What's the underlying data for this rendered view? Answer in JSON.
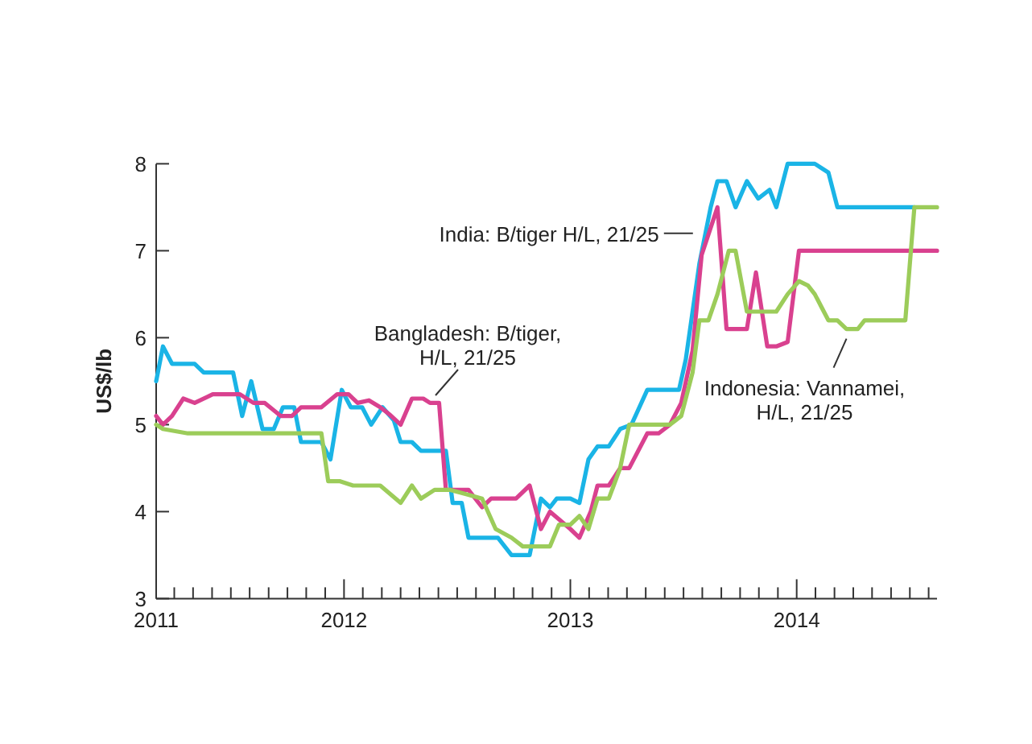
{
  "chart_data": {
    "type": "line",
    "ylabel": "US$/lb",
    "xlim": [
      2011.17,
      2014.62
    ],
    "ylim": [
      3,
      8
    ],
    "yticks": [
      3,
      4,
      5,
      6,
      7,
      8
    ],
    "xticks": [
      {
        "value": 2011.17,
        "label": "2011"
      },
      {
        "value": 2011.25,
        "label": null
      },
      {
        "value": 2011.333,
        "label": null
      },
      {
        "value": 2011.417,
        "label": null
      },
      {
        "value": 2011.5,
        "label": null
      },
      {
        "value": 2011.583,
        "label": null
      },
      {
        "value": 2011.667,
        "label": null
      },
      {
        "value": 2011.75,
        "label": null
      },
      {
        "value": 2011.833,
        "label": null
      },
      {
        "value": 2011.917,
        "label": null
      },
      2012,
      {
        "value": 2012.083,
        "label": null
      },
      {
        "value": 2012.167,
        "label": null
      },
      {
        "value": 2012.25,
        "label": null
      },
      {
        "value": 2012.333,
        "label": null
      },
      {
        "value": 2012.417,
        "label": null
      },
      {
        "value": 2012.5,
        "label": null
      },
      {
        "value": 2012.583,
        "label": null
      },
      {
        "value": 2012.667,
        "label": null
      },
      {
        "value": 2012.75,
        "label": null
      },
      {
        "value": 2012.833,
        "label": null
      },
      {
        "value": 2012.917,
        "label": null
      },
      2013,
      {
        "value": 2013.083,
        "label": null
      },
      {
        "value": 2013.167,
        "label": null
      },
      {
        "value": 2013.25,
        "label": null
      },
      {
        "value": 2013.333,
        "label": null
      },
      {
        "value": 2013.417,
        "label": null
      },
      {
        "value": 2013.5,
        "label": null
      },
      {
        "value": 2013.583,
        "label": null
      },
      {
        "value": 2013.667,
        "label": null
      },
      {
        "value": 2013.75,
        "label": null
      },
      {
        "value": 2013.833,
        "label": null
      },
      {
        "value": 2013.917,
        "label": null
      },
      2014,
      {
        "value": 2014.083,
        "label": null
      },
      {
        "value": 2014.167,
        "label": null
      },
      {
        "value": 2014.25,
        "label": null
      },
      {
        "value": 2014.333,
        "label": null
      },
      {
        "value": 2014.417,
        "label": null
      },
      {
        "value": 2014.5,
        "label": null
      },
      {
        "value": 2014.583,
        "label": null
      }
    ],
    "grid": false,
    "marker": "none",
    "line_style": "solid",
    "series": [
      {
        "color": "#1ab4e6",
        "x": [
          2011.17,
          2011.2,
          2011.24,
          2011.34,
          2011.38,
          2011.51,
          2011.55,
          2011.59,
          2011.64,
          2011.69,
          2011.73,
          2011.78,
          2011.81,
          2011.9,
          2011.94,
          2011.99,
          2012.03,
          2012.08,
          2012.12,
          2012.17,
          2012.22,
          2012.25,
          2012.3,
          2012.34,
          2012.45,
          2012.48,
          2012.52,
          2012.55,
          2012.68,
          2012.74,
          2012.82,
          2012.87,
          2012.91,
          2012.94,
          2013.0,
          2013.04,
          2013.08,
          2013.12,
          2013.17,
          2013.22,
          2013.27,
          2013.34,
          2013.48,
          2013.51,
          2013.57,
          2013.62,
          2013.65,
          2013.69,
          2013.73,
          2013.78,
          2013.83,
          2013.88,
          2013.91,
          2013.96,
          2014.08,
          2014.14,
          2014.18,
          2014.52
        ],
        "values": [
          5.5,
          5.9,
          5.7,
          5.7,
          5.6,
          5.6,
          5.1,
          5.5,
          4.95,
          4.95,
          5.2,
          5.2,
          4.8,
          4.8,
          4.6,
          5.4,
          5.2,
          5.2,
          5.0,
          5.2,
          5.05,
          4.8,
          4.8,
          4.7,
          4.7,
          4.1,
          4.1,
          3.7,
          3.7,
          3.5,
          3.5,
          4.15,
          4.05,
          4.15,
          4.15,
          4.1,
          4.6,
          4.75,
          4.75,
          4.95,
          5.0,
          5.4,
          5.4,
          5.75,
          6.85,
          7.5,
          7.8,
          7.8,
          7.5,
          7.8,
          7.6,
          7.7,
          7.5,
          8.0,
          8.0,
          7.9,
          7.5,
          7.5
        ]
      },
      {
        "color": "#d9418f",
        "x": [
          2011.17,
          2011.2,
          2011.24,
          2011.29,
          2011.34,
          2011.42,
          2011.54,
          2011.6,
          2011.65,
          2011.72,
          2011.77,
          2011.81,
          2011.9,
          2011.97,
          2012.02,
          2012.06,
          2012.11,
          2012.16,
          2012.2,
          2012.25,
          2012.3,
          2012.35,
          2012.38,
          2012.42,
          2012.45,
          2012.55,
          2012.61,
          2012.65,
          2012.76,
          2012.82,
          2012.87,
          2012.91,
          2013.0,
          2013.04,
          2013.09,
          2013.12,
          2013.17,
          2013.22,
          2013.26,
          2013.34,
          2013.39,
          2013.44,
          2013.49,
          2013.54,
          2013.58,
          2013.65,
          2013.69,
          2013.78,
          2013.82,
          2013.87,
          2013.91,
          2013.96,
          2014.01,
          2014.62
        ],
        "values": [
          5.1,
          5.0,
          5.1,
          5.3,
          5.25,
          5.35,
          5.35,
          5.25,
          5.25,
          5.1,
          5.1,
          5.2,
          5.2,
          5.35,
          5.35,
          5.25,
          5.28,
          5.2,
          5.12,
          5.0,
          5.3,
          5.3,
          5.25,
          5.25,
          4.25,
          4.25,
          4.05,
          4.15,
          4.15,
          4.3,
          3.8,
          4.0,
          3.8,
          3.7,
          4.0,
          4.3,
          4.3,
          4.5,
          4.5,
          4.9,
          4.9,
          5.0,
          5.25,
          5.85,
          6.95,
          7.5,
          6.1,
          6.1,
          6.75,
          5.9,
          5.9,
          5.95,
          7.0,
          7.0
        ]
      },
      {
        "color": "#9ccc5a",
        "x": [
          2011.17,
          2011.2,
          2011.31,
          2011.9,
          2011.93,
          2011.98,
          2012.04,
          2012.16,
          2012.25,
          2012.3,
          2012.34,
          2012.4,
          2012.47,
          2012.54,
          2012.61,
          2012.67,
          2012.74,
          2012.79,
          2012.91,
          2012.95,
          2013.0,
          2013.04,
          2013.08,
          2013.12,
          2013.17,
          2013.22,
          2013.26,
          2013.44,
          2013.49,
          2013.54,
          2013.57,
          2013.61,
          2013.65,
          2013.7,
          2013.73,
          2013.78,
          2013.91,
          2013.96,
          2014.01,
          2014.05,
          2014.08,
          2014.14,
          2014.18,
          2014.22,
          2014.27,
          2014.3,
          2014.48,
          2014.52,
          2014.62
        ],
        "values": [
          5.0,
          4.95,
          4.9,
          4.9,
          4.35,
          4.35,
          4.3,
          4.3,
          4.1,
          4.3,
          4.15,
          4.25,
          4.25,
          4.2,
          4.15,
          3.8,
          3.7,
          3.6,
          3.6,
          3.85,
          3.85,
          3.95,
          3.8,
          4.15,
          4.15,
          4.5,
          5.0,
          5.0,
          5.1,
          5.6,
          6.2,
          6.2,
          6.5,
          7.0,
          7.0,
          6.3,
          6.3,
          6.5,
          6.65,
          6.6,
          6.5,
          6.2,
          6.2,
          6.1,
          6.1,
          6.2,
          6.2,
          7.5,
          7.5
        ]
      }
    ],
    "annotations": [
      {
        "text": "India: B/tiger H/L, 21/25",
        "x": 2013.57,
        "y": 7.2
      },
      {
        "text": "Bangladesh: B/tiger,\nH/L, 21/25",
        "x": 2012.39,
        "y": 5.3
      },
      {
        "text": "Indonesia: Vannamei,\nH/L, 21/25",
        "x": 2014.22,
        "y": 6.1
      }
    ]
  }
}
